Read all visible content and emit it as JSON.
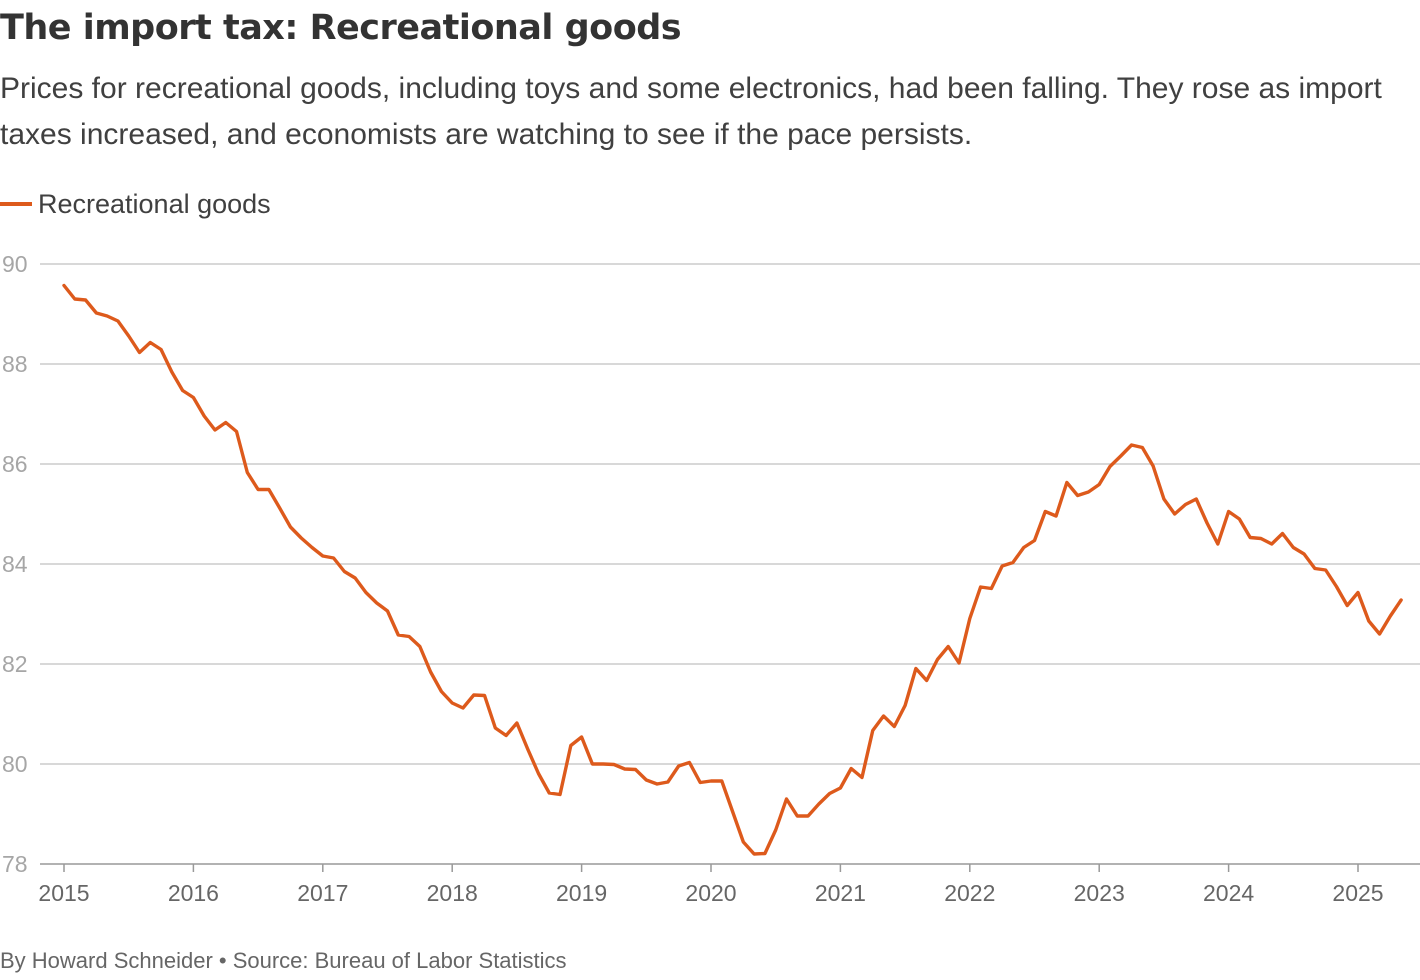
{
  "header": {
    "title": "The import tax: Recreational goods",
    "subtitle": "Prices for recreational goods, including toys and some electronics, had been falling. They rose as import taxes increased, and economists are watching to see if the pace persists."
  },
  "footer": {
    "credit": "By Howard Schneider • Source: Bureau of Labor Statistics"
  },
  "colors": {
    "series": "#dd5a1c",
    "grid": "#cccccc",
    "axis": "#999999"
  },
  "chart_data": {
    "type": "line",
    "title": "The import tax: Recreational goods",
    "xlabel": "",
    "ylabel": "",
    "ylim": [
      78,
      90
    ],
    "yticks": [
      90,
      88,
      86,
      84,
      82,
      80,
      78
    ],
    "xticks": [
      "2015",
      "2016",
      "2017",
      "2018",
      "2019",
      "2020",
      "2021",
      "2022",
      "2023",
      "2024",
      "2025"
    ],
    "x_start": "2015-01",
    "x_end": "2025-05",
    "grid": true,
    "legend_position": "top-left",
    "series": [
      {
        "name": "Recreational goods",
        "x": [
          "2015-01",
          "2015-02",
          "2015-03",
          "2015-04",
          "2015-05",
          "2015-06",
          "2015-07",
          "2015-08",
          "2015-09",
          "2015-10",
          "2015-11",
          "2015-12",
          "2016-01",
          "2016-02",
          "2016-03",
          "2016-04",
          "2016-05",
          "2016-06",
          "2016-07",
          "2016-08",
          "2016-09",
          "2016-10",
          "2016-11",
          "2016-12",
          "2017-01",
          "2017-02",
          "2017-03",
          "2017-04",
          "2017-05",
          "2017-06",
          "2017-07",
          "2017-08",
          "2017-09",
          "2017-10",
          "2017-11",
          "2017-12",
          "2018-01",
          "2018-02",
          "2018-03",
          "2018-04",
          "2018-05",
          "2018-06",
          "2018-07",
          "2018-08",
          "2018-09",
          "2018-10",
          "2018-11",
          "2018-12",
          "2019-01",
          "2019-02",
          "2019-03",
          "2019-04",
          "2019-05",
          "2019-06",
          "2019-07",
          "2019-08",
          "2019-09",
          "2019-10",
          "2019-11",
          "2019-12",
          "2020-01",
          "2020-02",
          "2020-03",
          "2020-04",
          "2020-05",
          "2020-06",
          "2020-07",
          "2020-08",
          "2020-09",
          "2020-10",
          "2020-11",
          "2020-12",
          "2021-01",
          "2021-02",
          "2021-03",
          "2021-04",
          "2021-05",
          "2021-06",
          "2021-07",
          "2021-08",
          "2021-09",
          "2021-10",
          "2021-11",
          "2021-12",
          "2022-01",
          "2022-02",
          "2022-03",
          "2022-04",
          "2022-05",
          "2022-06",
          "2022-07",
          "2022-08",
          "2022-09",
          "2022-10",
          "2022-11",
          "2022-12",
          "2023-01",
          "2023-02",
          "2023-03",
          "2023-04",
          "2023-05",
          "2023-06",
          "2023-07",
          "2023-08",
          "2023-09",
          "2023-10",
          "2023-11",
          "2023-12",
          "2024-01",
          "2024-02",
          "2024-03",
          "2024-04",
          "2024-05",
          "2024-06",
          "2024-07",
          "2024-08",
          "2024-09",
          "2024-10",
          "2024-11",
          "2024-12",
          "2025-01",
          "2025-02",
          "2025-03",
          "2025-04",
          "2025-05"
        ],
        "values": [
          89.57,
          89.3,
          89.28,
          89.02,
          88.96,
          88.86,
          88.56,
          88.23,
          88.43,
          88.29,
          87.84,
          87.47,
          87.33,
          86.96,
          86.68,
          86.83,
          86.65,
          85.83,
          85.49,
          85.49,
          85.12,
          84.74,
          84.52,
          84.33,
          84.16,
          84.12,
          83.85,
          83.72,
          83.43,
          83.22,
          83.06,
          82.58,
          82.55,
          82.35,
          81.84,
          81.45,
          81.22,
          81.12,
          81.38,
          81.37,
          80.72,
          80.57,
          80.82,
          80.3,
          79.81,
          79.42,
          79.39,
          80.37,
          80.54,
          80.0,
          80.0,
          79.99,
          79.9,
          79.89,
          79.68,
          79.6,
          79.64,
          79.96,
          80.03,
          79.63,
          79.66,
          79.66,
          79.05,
          78.44,
          78.2,
          78.21,
          78.68,
          79.3,
          78.96,
          78.96,
          79.2,
          79.41,
          79.52,
          79.91,
          79.73,
          80.67,
          80.96,
          80.75,
          81.17,
          81.91,
          81.67,
          82.09,
          82.35,
          82.02,
          82.91,
          83.54,
          83.51,
          83.96,
          84.03,
          84.33,
          84.47,
          85.05,
          84.96,
          85.63,
          85.37,
          85.44,
          85.59,
          85.95,
          86.16,
          86.38,
          86.33,
          85.96,
          85.3,
          85.0,
          85.19,
          85.3,
          84.82,
          84.4,
          85.05,
          84.9,
          84.53,
          84.51,
          84.4,
          84.61,
          84.33,
          84.2,
          83.91,
          83.88,
          83.55,
          83.17,
          83.43,
          82.86,
          82.6,
          82.96,
          83.28
        ]
      }
    ]
  }
}
